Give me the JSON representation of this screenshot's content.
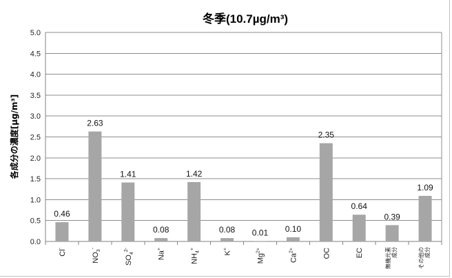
{
  "chart_data": {
    "type": "bar",
    "title": "冬季(10.7µg/m³)",
    "ylabel": "各成分の濃度[µg/m³]",
    "xlabel": "",
    "ylim": [
      0,
      5.0
    ],
    "ytick_step": 0.5,
    "yticks": [
      "0.0",
      "0.5",
      "1.0",
      "1.5",
      "2.0",
      "2.5",
      "3.0",
      "3.5",
      "4.0",
      "4.5",
      "5.0"
    ],
    "grid": true,
    "legend": "none",
    "bar_color": "#a6a6a6",
    "categories": [
      {
        "base": "Cl",
        "sup": "-"
      },
      {
        "base": "NO",
        "sub": "3",
        "sup": "-"
      },
      {
        "base": "SO",
        "sub": "4",
        "sup": "2-"
      },
      {
        "base": "Na",
        "sup": "+"
      },
      {
        "base": "NH",
        "sub": "4",
        "sup": "+"
      },
      {
        "base": "K",
        "sup": "+"
      },
      {
        "base": "Mg",
        "sup": "2+"
      },
      {
        "base": "Ca",
        "sup": "2+"
      },
      {
        "base": "OC"
      },
      {
        "base": "EC"
      },
      {
        "lines": [
          "無機元素",
          "成分"
        ]
      },
      {
        "lines": [
          "その他の",
          "成分"
        ]
      }
    ],
    "values": [
      0.46,
      2.63,
      1.41,
      0.08,
      1.42,
      0.08,
      0.01,
      0.1,
      2.35,
      0.64,
      0.39,
      1.09
    ],
    "value_labels": [
      "0.46",
      "2.63",
      "1.41",
      "0.08",
      "1.42",
      "0.08",
      "0.01",
      "0.10",
      "2.35",
      "0.64",
      "0.39",
      "1.09"
    ]
  }
}
